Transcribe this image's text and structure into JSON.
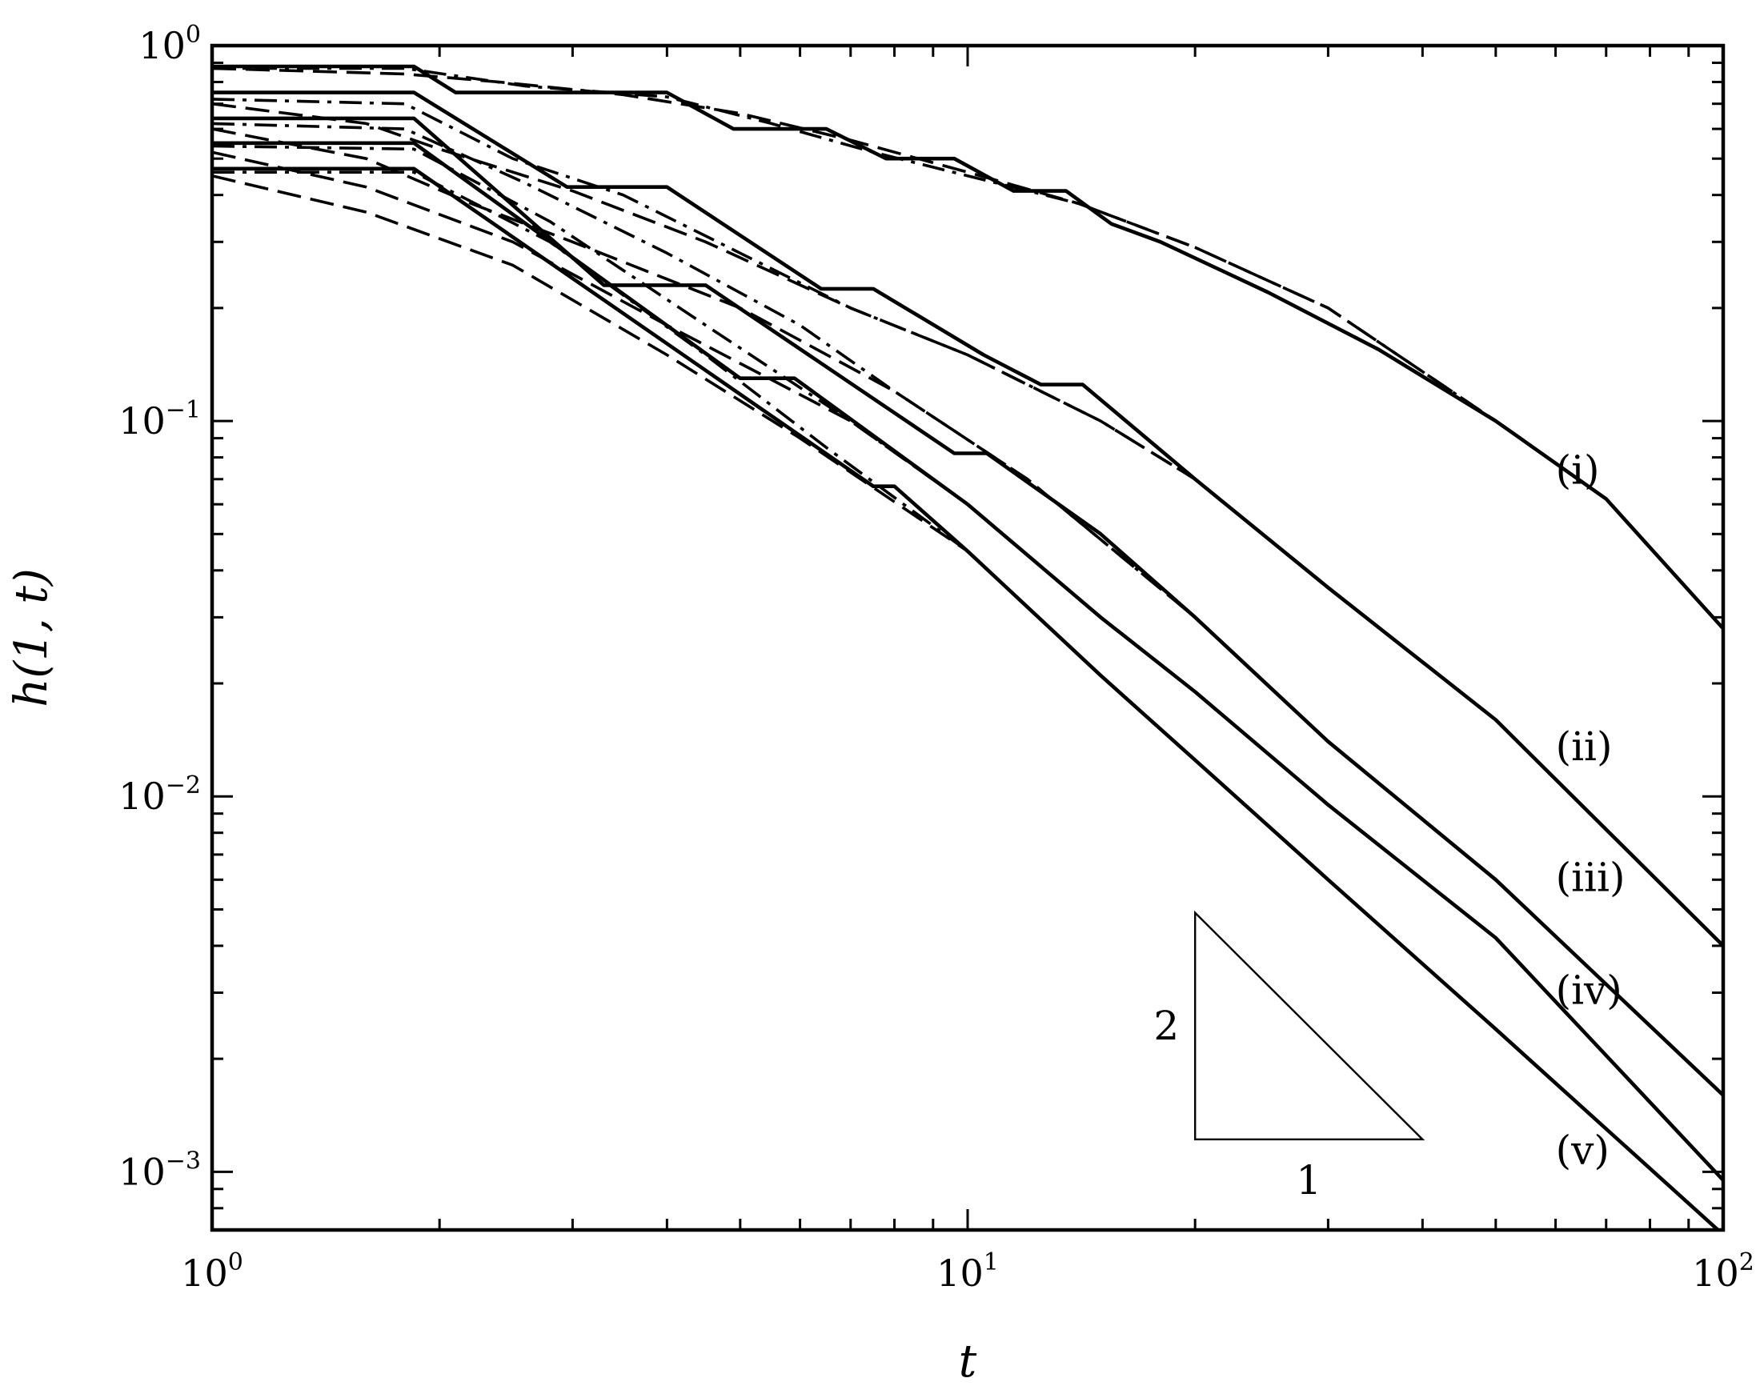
{
  "chart_data": {
    "type": "line",
    "x_scale": "log",
    "y_scale": "log",
    "xlabel": "t",
    "ylabel": "h(1, t)",
    "xlim": [
      1,
      100
    ],
    "ylim": [
      0.0007,
      1
    ],
    "x_ticks": [
      {
        "value": 1,
        "base": "10",
        "exp": "0"
      },
      {
        "value": 10,
        "base": "10",
        "exp": "1"
      },
      {
        "value": 100,
        "base": "10",
        "exp": "2"
      }
    ],
    "y_ticks": [
      {
        "value": 1,
        "base": "10",
        "exp": "0"
      },
      {
        "value": 0.1,
        "base": "10",
        "exp": "−1"
      },
      {
        "value": 0.01,
        "base": "10",
        "exp": "−2"
      },
      {
        "value": 0.001,
        "base": "10",
        "exp": "−3"
      }
    ],
    "grid": false,
    "line_color": "#000000",
    "series": [
      {
        "name": "(i)",
        "label_at": [
          60,
          0.068
        ],
        "solid": [
          [
            1,
            0.88
          ],
          [
            1.85,
            0.88
          ],
          [
            2.1,
            0.75
          ],
          [
            4.0,
            0.75
          ],
          [
            4.9,
            0.6
          ],
          [
            6.5,
            0.6
          ],
          [
            7.8,
            0.5
          ],
          [
            9.6,
            0.5
          ],
          [
            11.5,
            0.41
          ],
          [
            13.5,
            0.41
          ],
          [
            15.5,
            0.335
          ],
          [
            18,
            0.3
          ],
          [
            25,
            0.22
          ],
          [
            35,
            0.155
          ],
          [
            50,
            0.1
          ],
          [
            70,
            0.062
          ],
          [
            100,
            0.028
          ]
        ],
        "dashed": [
          [
            1,
            0.87
          ],
          [
            1.8,
            0.84
          ],
          [
            2.4,
            0.8
          ],
          [
            3.5,
            0.74
          ],
          [
            5,
            0.66
          ],
          [
            7,
            0.56
          ],
          [
            10,
            0.46
          ],
          [
            14,
            0.38
          ],
          [
            20,
            0.29
          ],
          [
            30,
            0.2
          ],
          [
            50,
            0.1
          ],
          [
            70,
            0.062
          ],
          [
            100,
            0.028
          ]
        ],
        "dashdot": [
          [
            1,
            0.87
          ],
          [
            1.8,
            0.87
          ],
          [
            2.6,
            0.78
          ],
          [
            4,
            0.73
          ],
          [
            5.5,
            0.62
          ],
          [
            7.5,
            0.52
          ],
          [
            10,
            0.45
          ],
          [
            14,
            0.38
          ],
          [
            20,
            0.29
          ],
          [
            30,
            0.2
          ],
          [
            50,
            0.1
          ],
          [
            70,
            0.062
          ],
          [
            100,
            0.028
          ]
        ]
      },
      {
        "name": "(ii)",
        "label_at": [
          60,
          0.0125
        ],
        "solid": [
          [
            1,
            0.75
          ],
          [
            1.85,
            0.75
          ],
          [
            2.95,
            0.42
          ],
          [
            4.0,
            0.42
          ],
          [
            6.4,
            0.225
          ],
          [
            7.5,
            0.225
          ],
          [
            10.5,
            0.15
          ],
          [
            12.5,
            0.125
          ],
          [
            14.2,
            0.125
          ],
          [
            20,
            0.07
          ],
          [
            30,
            0.036
          ],
          [
            50,
            0.016
          ],
          [
            100,
            0.004
          ]
        ],
        "dashed": [
          [
            1,
            0.7
          ],
          [
            1.6,
            0.62
          ],
          [
            2,
            0.53
          ],
          [
            3,
            0.41
          ],
          [
            4.5,
            0.3
          ],
          [
            7,
            0.2
          ],
          [
            10,
            0.15
          ],
          [
            15,
            0.1
          ],
          [
            20,
            0.07
          ],
          [
            30,
            0.036
          ],
          [
            50,
            0.016
          ],
          [
            100,
            0.004
          ]
        ],
        "dashdot": [
          [
            1,
            0.72
          ],
          [
            1.8,
            0.7
          ],
          [
            2.5,
            0.5
          ],
          [
            3.5,
            0.4
          ],
          [
            5,
            0.28
          ],
          [
            7,
            0.2
          ],
          [
            10,
            0.15
          ],
          [
            15,
            0.1
          ],
          [
            20,
            0.07
          ],
          [
            30,
            0.036
          ],
          [
            50,
            0.016
          ],
          [
            100,
            0.004
          ]
        ]
      },
      {
        "name": "(iii)",
        "label_at": [
          60,
          0.0056
        ],
        "solid": [
          [
            1,
            0.64
          ],
          [
            1.85,
            0.64
          ],
          [
            3.3,
            0.23
          ],
          [
            4.5,
            0.23
          ],
          [
            9.6,
            0.082
          ],
          [
            10.6,
            0.082
          ],
          [
            15,
            0.05
          ],
          [
            20,
            0.03
          ],
          [
            30,
            0.014
          ],
          [
            50,
            0.006
          ],
          [
            100,
            0.0016
          ]
        ],
        "dashed": [
          [
            1,
            0.6
          ],
          [
            1.6,
            0.5
          ],
          [
            2.2,
            0.38
          ],
          [
            3,
            0.3
          ],
          [
            5,
            0.2
          ],
          [
            8,
            0.12
          ],
          [
            12,
            0.07
          ],
          [
            20,
            0.03
          ],
          [
            30,
            0.014
          ],
          [
            50,
            0.006
          ],
          [
            100,
            0.0016
          ]
        ],
        "dashdot": [
          [
            1,
            0.62
          ],
          [
            1.8,
            0.6
          ],
          [
            2.6,
            0.43
          ],
          [
            4,
            0.28
          ],
          [
            6,
            0.18
          ],
          [
            8,
            0.12
          ],
          [
            12,
            0.07
          ],
          [
            20,
            0.03
          ],
          [
            30,
            0.014
          ],
          [
            50,
            0.006
          ],
          [
            100,
            0.0016
          ]
        ]
      },
      {
        "name": "(iv)",
        "label_at": [
          60,
          0.0028
        ],
        "solid": [
          [
            1,
            0.55
          ],
          [
            1.85,
            0.55
          ],
          [
            5.0,
            0.13
          ],
          [
            5.9,
            0.13
          ],
          [
            10,
            0.06
          ],
          [
            15,
            0.03
          ],
          [
            20,
            0.019
          ],
          [
            30,
            0.0095
          ],
          [
            50,
            0.0042
          ],
          [
            100,
            0.00095
          ]
        ],
        "dashed": [
          [
            1,
            0.52
          ],
          [
            1.6,
            0.42
          ],
          [
            2.5,
            0.3
          ],
          [
            4,
            0.18
          ],
          [
            7,
            0.1
          ],
          [
            10,
            0.06
          ],
          [
            15,
            0.03
          ],
          [
            20,
            0.019
          ],
          [
            30,
            0.0095
          ],
          [
            50,
            0.0042
          ],
          [
            100,
            0.00095
          ]
        ],
        "dashdot": [
          [
            1,
            0.54
          ],
          [
            1.85,
            0.53
          ],
          [
            2.8,
            0.34
          ],
          [
            4.5,
            0.18
          ],
          [
            7,
            0.1
          ],
          [
            10,
            0.06
          ],
          [
            15,
            0.03
          ],
          [
            20,
            0.019
          ],
          [
            30,
            0.0095
          ],
          [
            50,
            0.0042
          ],
          [
            100,
            0.00095
          ]
        ]
      },
      {
        "name": "(v)",
        "label_at": [
          60,
          0.00105
        ],
        "solid": [
          [
            1,
            0.47
          ],
          [
            1.85,
            0.47
          ],
          [
            7.5,
            0.067
          ],
          [
            8.0,
            0.067
          ],
          [
            10,
            0.045
          ],
          [
            15,
            0.021
          ],
          [
            20,
            0.0125
          ],
          [
            30,
            0.006
          ],
          [
            50,
            0.0024
          ],
          [
            100,
            0.00068
          ]
        ],
        "dashed": [
          [
            1,
            0.45
          ],
          [
            1.6,
            0.36
          ],
          [
            2.5,
            0.26
          ],
          [
            4,
            0.15
          ],
          [
            6,
            0.09
          ],
          [
            10,
            0.045
          ],
          [
            15,
            0.021
          ],
          [
            20,
            0.0125
          ],
          [
            30,
            0.006
          ],
          [
            50,
            0.0024
          ],
          [
            100,
            0.00068
          ]
        ],
        "dashdot": [
          [
            1,
            0.46
          ],
          [
            1.85,
            0.46
          ],
          [
            2.8,
            0.3
          ],
          [
            4.5,
            0.15
          ],
          [
            6.5,
            0.085
          ],
          [
            10,
            0.045
          ],
          [
            15,
            0.021
          ],
          [
            20,
            0.0125
          ],
          [
            30,
            0.006
          ],
          [
            50,
            0.0024
          ],
          [
            100,
            0.00068
          ]
        ]
      }
    ],
    "annotations": {
      "slope_triangle": {
        "vertices": [
          [
            20,
            0.0049
          ],
          [
            20,
            0.00122
          ],
          [
            40,
            0.00122
          ]
        ],
        "vertical_label": "2",
        "horizontal_label": "1"
      }
    }
  }
}
